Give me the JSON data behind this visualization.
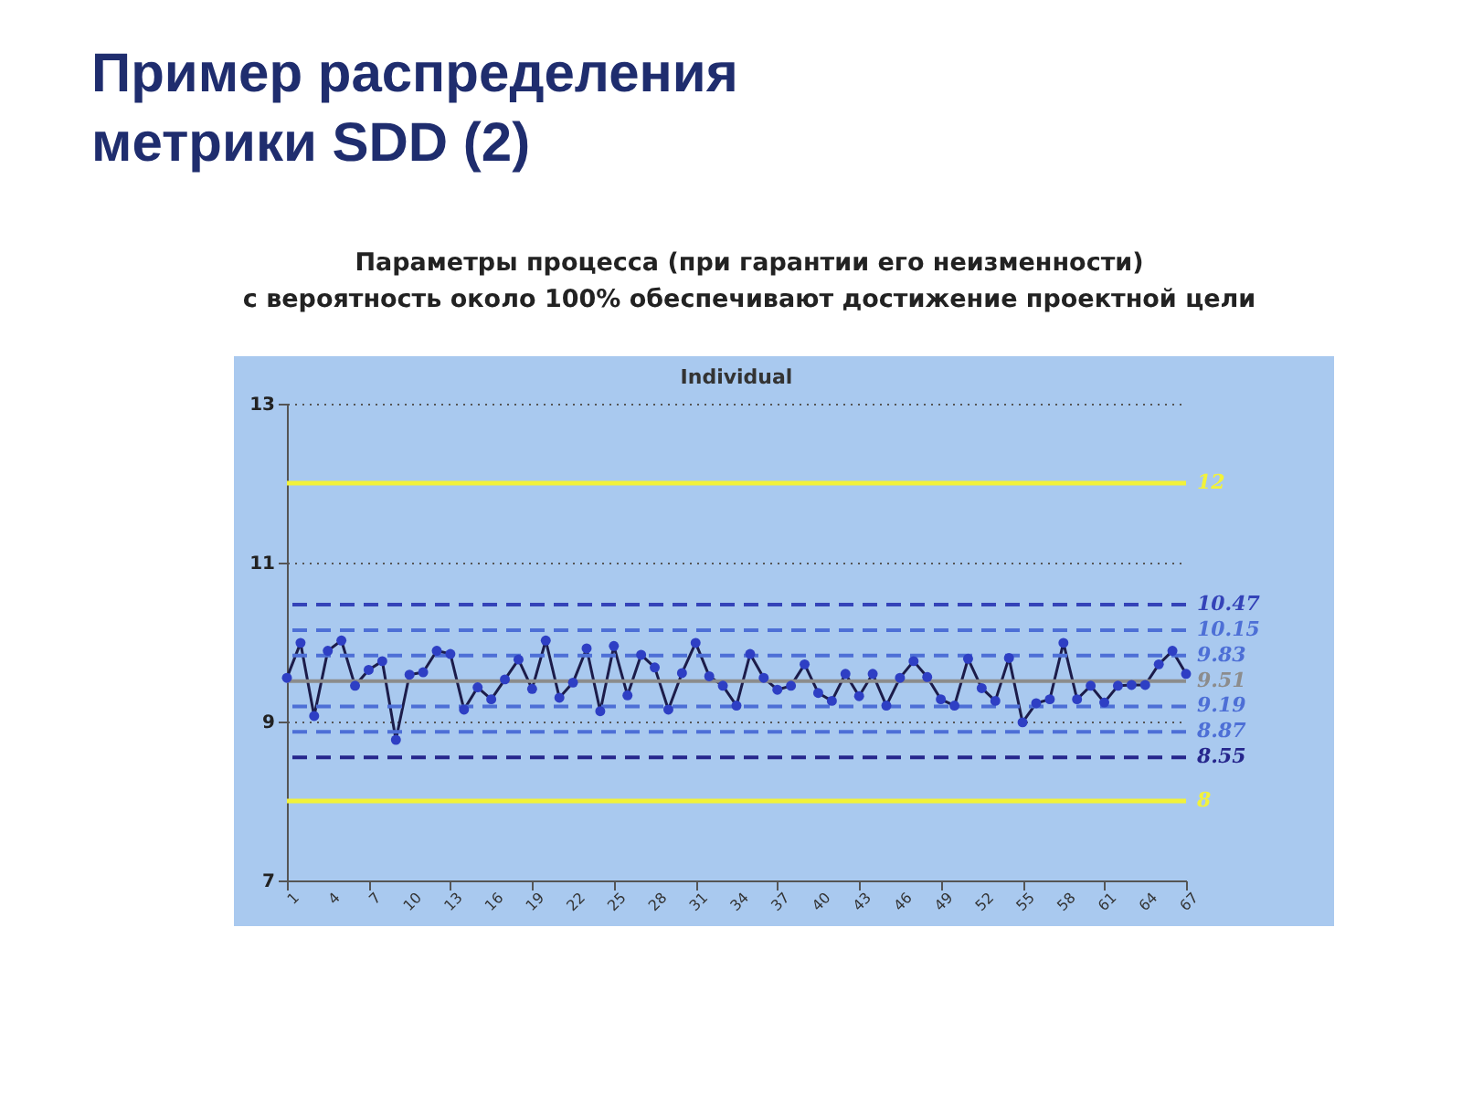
{
  "chart_data": {
    "type": "line",
    "title": "Пример распределения метрики SDD (2)",
    "subtitle": "Параметры процесса (при гарантии его неизменности)\nс вероятность около 100% обеспечивают достижение проектной цели",
    "annotations": [
      "Individual"
    ],
    "x": [
      1,
      2,
      3,
      4,
      5,
      6,
      7,
      8,
      9,
      10,
      11,
      12,
      13,
      14,
      15,
      16,
      17,
      18,
      19,
      20,
      21,
      22,
      23,
      24,
      25,
      26,
      27,
      28,
      29,
      30,
      31,
      32,
      33,
      34,
      35,
      36,
      37,
      38,
      39,
      40,
      41,
      42,
      43,
      44,
      45,
      46,
      47,
      48,
      49,
      50,
      51,
      52,
      53,
      54,
      55,
      56,
      57,
      58,
      59,
      60,
      61,
      62,
      63,
      64,
      65,
      66,
      67
    ],
    "series": [
      {
        "color": "#2e3fc4",
        "values": [
          9.55,
          9.99,
          9.07,
          9.89,
          10.02,
          9.45,
          9.65,
          9.76,
          8.77,
          9.59,
          9.62,
          9.89,
          9.85,
          9.15,
          9.43,
          9.28,
          9.53,
          9.78,
          9.41,
          10.02,
          9.3,
          9.49,
          9.92,
          9.13,
          9.95,
          9.33,
          9.84,
          9.68,
          9.15,
          9.61,
          9.99,
          9.57,
          9.45,
          9.2,
          9.85,
          9.55,
          9.4,
          9.45,
          9.72,
          9.36,
          9.26,
          9.6,
          9.32,
          9.6,
          9.2,
          9.55,
          9.76,
          9.56,
          9.28,
          9.2,
          9.79,
          9.42,
          9.26,
          9.8,
          8.99,
          9.23,
          9.28,
          9.99,
          9.28,
          9.45,
          9.24,
          9.45,
          9.46,
          9.46,
          9.72,
          9.89,
          9.6
        ]
      }
    ],
    "xlim": [
      1,
      67
    ],
    "xticks": [
      1,
      4,
      7,
      10,
      13,
      16,
      19,
      22,
      25,
      28,
      31,
      34,
      37,
      40,
      43,
      46,
      49,
      52,
      55,
      58,
      61,
      64,
      67
    ],
    "ylim": [
      7,
      13
    ],
    "yticks": [
      7,
      9,
      11,
      13
    ],
    "grid": "y",
    "legend": false,
    "marker": "circle",
    "line_style": "solid",
    "ref_lines": [
      {
        "axis": "y",
        "value": 12,
        "label": "12",
        "color": "#f2f23a",
        "line_style": "solid"
      },
      {
        "axis": "y",
        "value": 10.47,
        "label": "10.47",
        "color": "#3443b8",
        "line_style": "dashed"
      },
      {
        "axis": "y",
        "value": 10.15,
        "label": "10.15",
        "color": "#4d6fd6",
        "line_style": "dashed"
      },
      {
        "axis": "y",
        "value": 9.83,
        "label": "9.83",
        "color": "#4d6fd6",
        "line_style": "dashed"
      },
      {
        "axis": "y",
        "value": 9.51,
        "label": "9.51",
        "color": "#8c8c8c",
        "line_style": "solid"
      },
      {
        "axis": "y",
        "value": 9.19,
        "label": "9.19",
        "color": "#4d6fd6",
        "line_style": "dashed"
      },
      {
        "axis": "y",
        "value": 8.87,
        "label": "8.87",
        "color": "#4d6fd6",
        "line_style": "dashed"
      },
      {
        "axis": "y",
        "value": 8.55,
        "label": "8.55",
        "color": "#26268c",
        "line_style": "dashed"
      },
      {
        "axis": "y",
        "value": 8,
        "label": "8",
        "color": "#f2f23a",
        "line_style": "solid"
      }
    ]
  }
}
